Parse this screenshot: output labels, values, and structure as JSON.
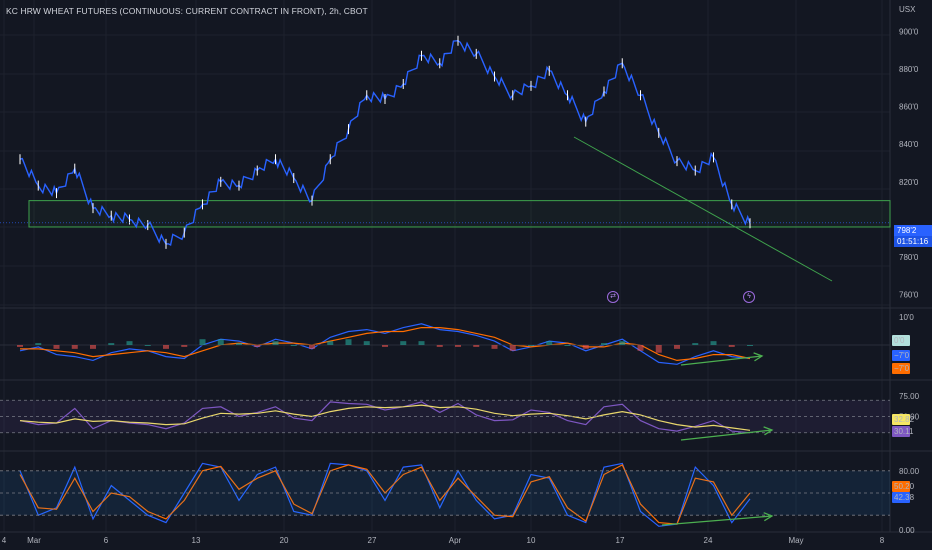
{
  "header": {
    "title": "KC HRW WHEAT FUTURES (CONTINUOUS: CURRENT CONTRACT IN FRONT), 2h, CBOT",
    "currency": "USX"
  },
  "price_axis": {
    "ticks": [
      "900'0",
      "880'0",
      "860'0",
      "840'0",
      "820'0",
      "780'0",
      "760'0"
    ],
    "last_price": "798'2",
    "countdown": "01:51:16"
  },
  "time_axis": {
    "labels": [
      "4",
      "Mar",
      "6",
      "13",
      "20",
      "27",
      "Apr",
      "10",
      "17",
      "24",
      "May",
      "8"
    ]
  },
  "macd": {
    "ticks": [
      "10'0"
    ],
    "tags": [
      {
        "text": "0'0",
        "color": "#b2dfdb",
        "fg": "#131722"
      },
      {
        "text": "−7'0",
        "color": "#2962ff",
        "fg": "#ffffff"
      },
      {
        "text": "−7'0",
        "color": "#ff6d00",
        "fg": "#ffffff"
      }
    ]
  },
  "rsi": {
    "ticks": [
      "75.00",
      "50.00"
    ],
    "tags": [
      {
        "text": "32.82",
        "color": "#f5e663",
        "fg": "#131722"
      },
      {
        "text": "30.11",
        "color": "#7e57c2",
        "fg": "#ffffff"
      }
    ]
  },
  "stoch": {
    "ticks": [
      "80.00",
      "0.00"
    ],
    "tags": [
      {
        "text": "50.20",
        "color": "#ff6d00",
        "fg": "#ffffff"
      },
      {
        "text": "42.38",
        "color": "#2962ff",
        "fg": "#ffffff"
      }
    ]
  },
  "icons": [
    {
      "name": "dividends-icon",
      "glyph": "⇄"
    },
    {
      "name": "earnings-icon",
      "glyph": "ϟ"
    }
  ],
  "colors": {
    "background": "#131722",
    "price_line": "#2962ff",
    "candle_up": "#ffffff",
    "zone_border": "#3fa34d",
    "trendline": "#3fa34d",
    "divergence_arrow": "#4caf50",
    "rsi_band": "#7e57c2",
    "stoch_band": "#2196f3"
  },
  "chart_data": [
    {
      "type": "line",
      "title": "KC HRW WHEAT FUTURES (CONTINUOUS: CURRENT CONTRACT IN FRONT), 2h, CBOT",
      "ylabel": "USX",
      "ylim": [
        754,
        906
      ],
      "x": [
        "Mar 1",
        "Mar 2",
        "Mar 3",
        "Mar 6",
        "Mar 7",
        "Mar 8",
        "Mar 9",
        "Mar 10",
        "Mar 13",
        "Mar 14",
        "Mar 15",
        "Mar 16",
        "Mar 17",
        "Mar 20",
        "Mar 21",
        "Mar 22",
        "Mar 23",
        "Mar 24",
        "Mar 27",
        "Mar 28",
        "Mar 29",
        "Mar 30",
        "Mar 31",
        "Apr 3",
        "Apr 4",
        "Apr 5",
        "Apr 6",
        "Apr 10",
        "Apr 11",
        "Apr 12",
        "Apr 13",
        "Apr 14",
        "Apr 17",
        "Apr 18",
        "Apr 19",
        "Apr 20",
        "Apr 21",
        "Apr 24",
        "Apr 25",
        "Apr 26",
        "Apr 27"
      ],
      "series": [
        {
          "values": [
            832,
            818,
            814,
            827,
            806,
            802,
            800,
            797,
            787,
            793,
            808,
            820,
            818,
            826,
            832,
            822,
            810,
            832,
            848,
            866,
            864,
            872,
            887,
            883,
            895,
            888,
            876,
            866,
            871,
            879,
            866,
            852,
            868,
            883,
            866,
            846,
            831,
            826,
            833,
            808,
            798
          ]
        }
      ],
      "support_zone": [
        796,
        810
      ]
    },
    {
      "type": "line",
      "title": "MACD",
      "series": [
        {
          "name": "MACD",
          "values": [
            -3,
            -1,
            -5,
            -6,
            -8,
            -4,
            -2,
            -3,
            -6,
            -7,
            0,
            3,
            2,
            -1,
            3,
            1,
            -2,
            4,
            7,
            8,
            6,
            9,
            11,
            8,
            7,
            5,
            2,
            -3,
            -1,
            2,
            1,
            -3,
            0,
            3,
            -3,
            -9,
            -10,
            -6,
            -3,
            -6,
            -7
          ]
        },
        {
          "name": "Signal",
          "values": [
            -2,
            -2,
            -3,
            -4,
            -6,
            -5,
            -4,
            -3,
            -4,
            -6,
            -3,
            0,
            1,
            0,
            1,
            1,
            0,
            2,
            4,
            6,
            7,
            7,
            9,
            9,
            8,
            6,
            4,
            0,
            -1,
            0,
            1,
            -1,
            -1,
            1,
            0,
            -5,
            -8,
            -7,
            -5,
            -5,
            -7
          ]
        }
      ]
    },
    {
      "type": "line",
      "title": "RSI",
      "ylim": [
        10,
        90
      ],
      "series": [
        {
          "name": "RSI",
          "values": [
            45,
            40,
            42,
            60,
            35,
            45,
            42,
            40,
            35,
            42,
            60,
            62,
            50,
            55,
            62,
            48,
            45,
            68,
            66,
            65,
            58,
            62,
            68,
            55,
            66,
            52,
            45,
            46,
            58,
            55,
            45,
            40,
            62,
            65,
            45,
            35,
            32,
            38,
            45,
            32,
            30
          ]
        },
        {
          "name": "RSI MA",
          "values": [
            45,
            43,
            42,
            47,
            44,
            45,
            43,
            42,
            40,
            41,
            48,
            54,
            53,
            54,
            57,
            53,
            50,
            56,
            60,
            62,
            61,
            62,
            64,
            61,
            62,
            59,
            54,
            51,
            53,
            54,
            51,
            47,
            52,
            56,
            52,
            45,
            40,
            37,
            39,
            36,
            33
          ]
        }
      ]
    },
    {
      "type": "line",
      "title": "Stochastic",
      "ylim": [
        0,
        100
      ],
      "series": [
        {
          "name": "%K",
          "values": [
            80,
            20,
            30,
            85,
            15,
            60,
            40,
            20,
            10,
            50,
            90,
            85,
            40,
            75,
            85,
            25,
            20,
            90,
            88,
            80,
            40,
            85,
            88,
            30,
            80,
            40,
            15,
            20,
            75,
            70,
            20,
            10,
            85,
            90,
            25,
            5,
            8,
            85,
            60,
            10,
            42
          ]
        },
        {
          "name": "%D",
          "values": [
            75,
            30,
            28,
            70,
            25,
            50,
            45,
            25,
            15,
            40,
            80,
            86,
            55,
            70,
            80,
            35,
            22,
            80,
            88,
            82,
            50,
            75,
            85,
            40,
            70,
            45,
            20,
            18,
            65,
            72,
            30,
            12,
            75,
            88,
            35,
            10,
            8,
            70,
            65,
            20,
            50
          ]
        }
      ]
    }
  ]
}
